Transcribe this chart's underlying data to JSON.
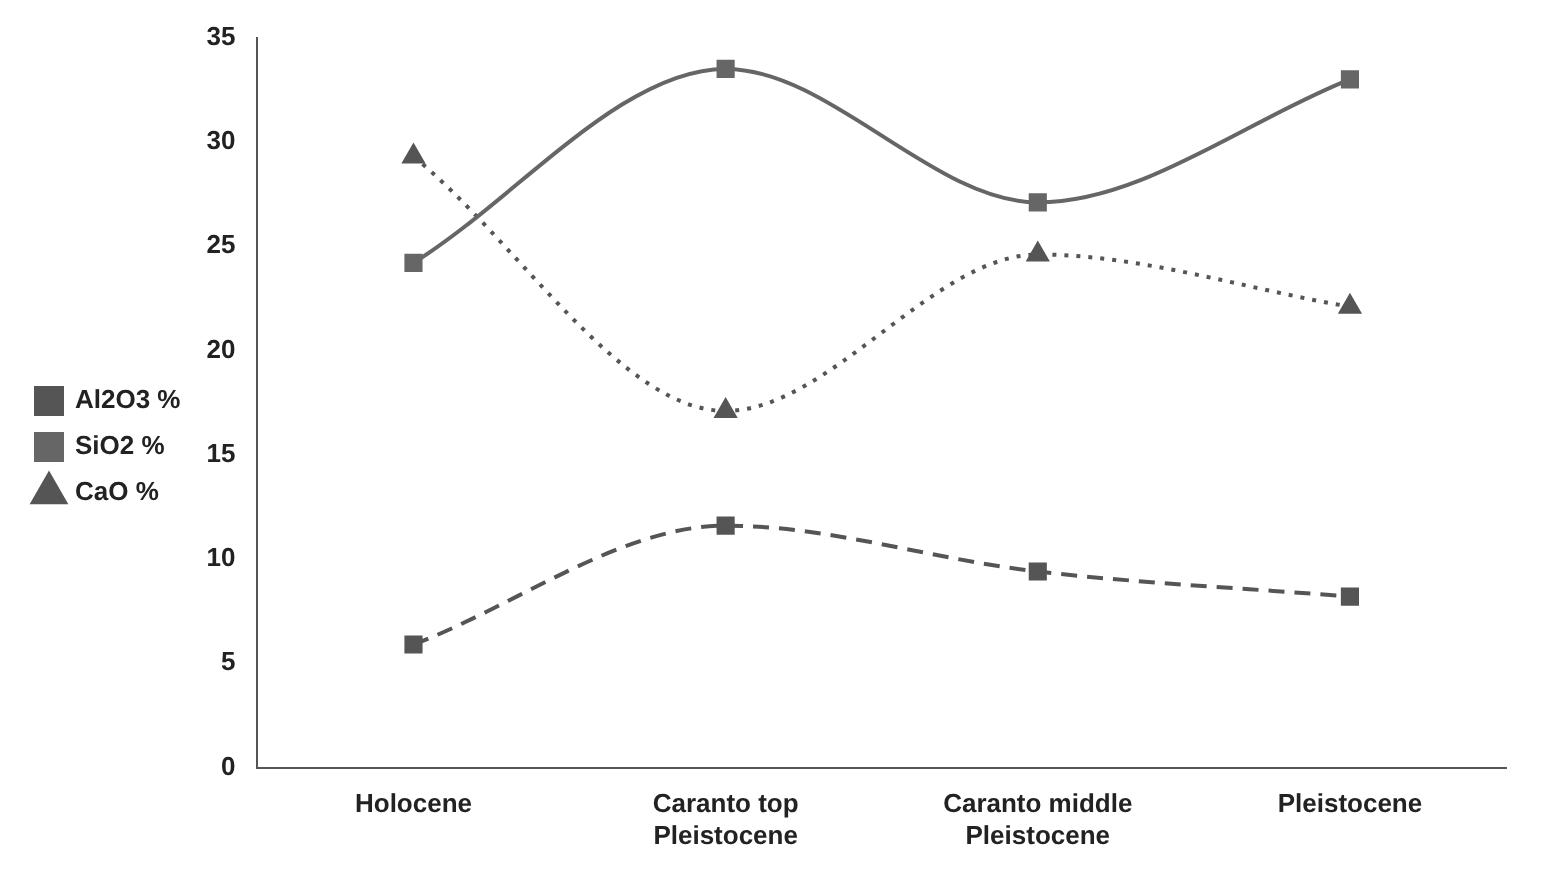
{
  "chart_data": {
    "type": "line",
    "categories": [
      "Holocene",
      "Caranto top\nPleistocene",
      "Caranto middle\nPleistocene",
      "Pleistocene"
    ],
    "series": [
      {
        "name": "Al2O3 %",
        "color": "#555555",
        "values": [
          5.9,
          11.6,
          9.4,
          8.2
        ],
        "marker": "square",
        "line_style": "dashed"
      },
      {
        "name": "SiO2 %",
        "color": "#666666",
        "values": [
          24.2,
          33.5,
          27.1,
          33.0
        ],
        "marker": "square",
        "line_style": "solid"
      },
      {
        "name": "CaO %",
        "color": "#555555",
        "values": [
          29.3,
          17.1,
          24.6,
          22.1
        ],
        "marker": "triangle",
        "line_style": "dotted"
      }
    ],
    "ylim": [
      0,
      35
    ],
    "yticks": [
      0,
      5,
      10,
      15,
      20,
      25,
      30,
      35
    ],
    "grid": false,
    "legend": "left"
  }
}
